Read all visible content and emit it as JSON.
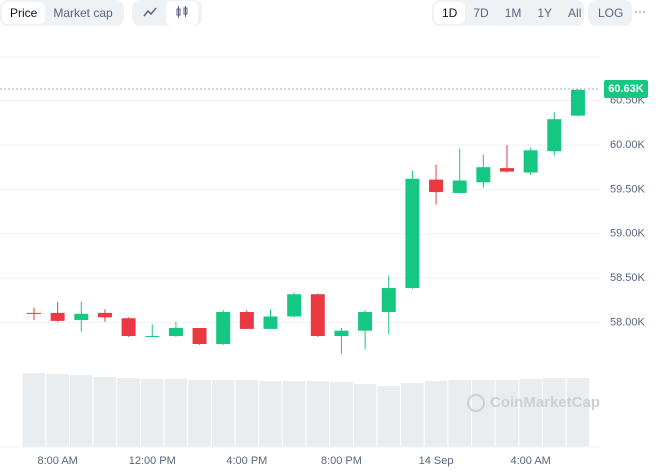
{
  "toolbar": {
    "views": [
      "Price",
      "Market cap"
    ],
    "ranges": [
      "1D",
      "7D",
      "1M",
      "1Y",
      "All"
    ],
    "log": "LOG",
    "more": "···"
  },
  "chart_data": {
    "type": "candlestick",
    "categories": [
      null,
      "8:00 AM",
      null,
      null,
      null,
      "12:00 PM",
      null,
      null,
      null,
      "4:00 PM",
      null,
      null,
      null,
      "8:00 PM",
      null,
      null,
      null,
      "14 Sep",
      null,
      null,
      null,
      "4:00 AM",
      null,
      null
    ],
    "open": [
      58110,
      58110,
      58030,
      58110,
      58050,
      57850,
      57850,
      57940,
      57760,
      58120,
      57930,
      58070,
      58320,
      57850,
      57910,
      58120,
      58390,
      59610,
      59460,
      59580,
      59740,
      59690,
      59930,
      60330
    ],
    "high": [
      58170,
      58230,
      58240,
      58150,
      58060,
      57980,
      58010,
      57940,
      58140,
      58140,
      58150,
      58340,
      58330,
      57940,
      58140,
      58530,
      59710,
      59780,
      59960,
      59890,
      60000,
      59970,
      60370,
      60630
    ],
    "low": [
      58030,
      58010,
      57900,
      58010,
      57840,
      57840,
      57840,
      57750,
      57750,
      57930,
      57930,
      58060,
      57840,
      57650,
      57700,
      57870,
      58380,
      59330,
      59460,
      59520,
      59690,
      59660,
      59880,
      60320
    ],
    "close": [
      58100,
      58020,
      58100,
      58060,
      57850,
      57850,
      57940,
      57760,
      58120,
      57930,
      58070,
      58320,
      57850,
      57910,
      58120,
      58390,
      59620,
      59470,
      59600,
      59750,
      59700,
      59940,
      60290,
      60620
    ],
    "up_color": "#16c784",
    "down_color": "#ea3943",
    "volume": [
      74,
      73,
      72,
      70,
      69,
      68,
      68,
      67,
      67,
      67,
      66,
      66,
      66,
      65,
      63,
      61,
      64,
      66,
      67,
      67,
      67,
      68,
      69,
      69
    ],
    "volume_ylim": [
      0,
      80
    ],
    "volume_color": "#eaedf0",
    "ylim": [
      57580,
      60990
    ],
    "yticks": [
      {
        "value": 58000,
        "label": "58.00K"
      },
      {
        "value": 58500,
        "label": "58.50K"
      },
      {
        "value": 59000,
        "label": "59.00K"
      },
      {
        "value": 59500,
        "label": "59.50K"
      },
      {
        "value": 60000,
        "label": "60.00K"
      },
      {
        "value": 60500,
        "label": "60.50K"
      }
    ],
    "grid": true,
    "current_price": {
      "value": 60630,
      "label": "60.63K"
    },
    "watermark": "CoinMarketCap"
  }
}
